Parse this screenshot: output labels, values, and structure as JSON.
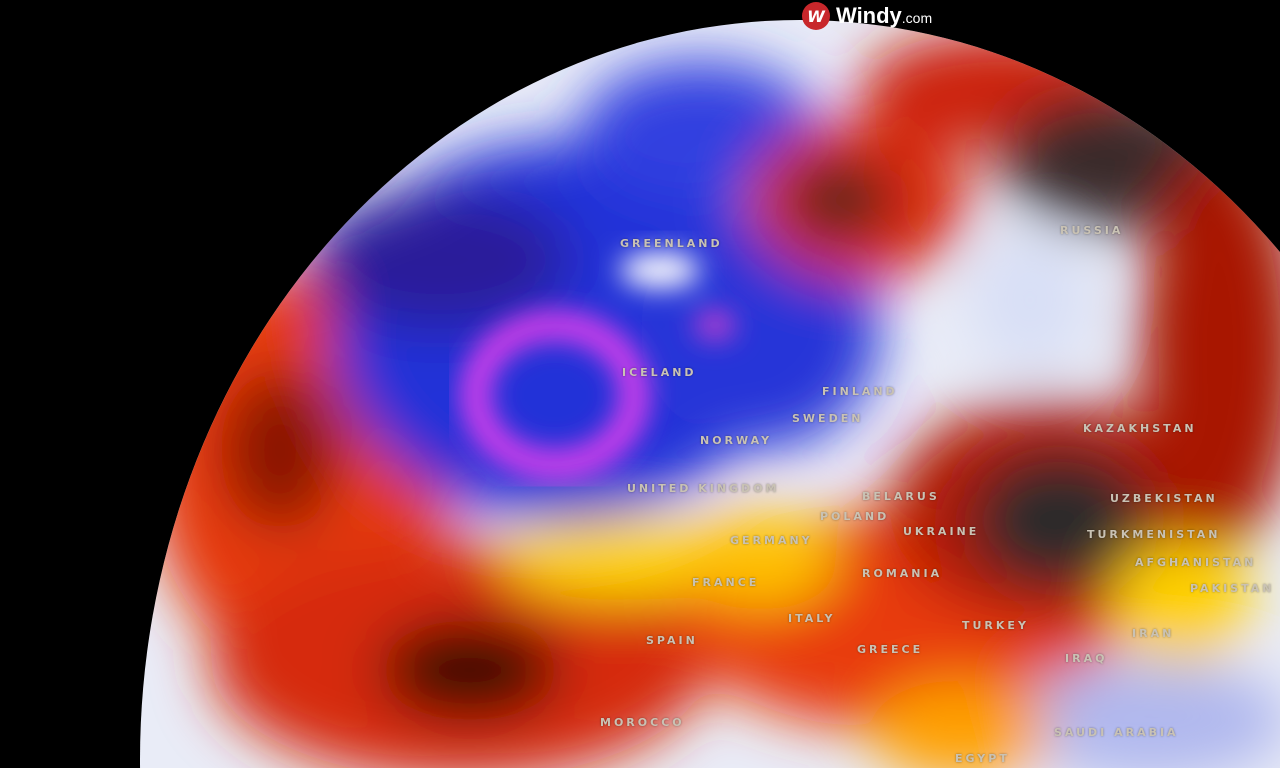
{
  "logo": {
    "mark": "W",
    "name": "Windy",
    "suffix": ".com"
  },
  "map": {
    "type": "globe temperature anomaly overlay with wind streamlines",
    "colors": {
      "cold": "#1a2fd0",
      "very_cold": "#e040e0",
      "neutral": "#e8ecf8",
      "warm": "#ffd000",
      "hot": "#e02000",
      "extreme": "#2a2a2a"
    },
    "labels": [
      "GREENLAND",
      "ICELAND",
      "RUSSIA",
      "FINLAND",
      "NORWAY",
      "SWEDEN",
      "UNITED KINGDOM",
      "GERMANY",
      "POLAND",
      "BELARUS",
      "UKRAINE",
      "KAZAKHSTAN",
      "UZBEKISTAN",
      "TURKMENISTAN",
      "AFGHANISTAN",
      "PAKISTAN",
      "ROMANIA",
      "FRANCE",
      "SPAIN",
      "ITALY",
      "GREECE",
      "TURKEY",
      "IRAN",
      "IRAQ",
      "SAUDI ARABIA",
      "EGYPT",
      "MOROCCO"
    ]
  }
}
